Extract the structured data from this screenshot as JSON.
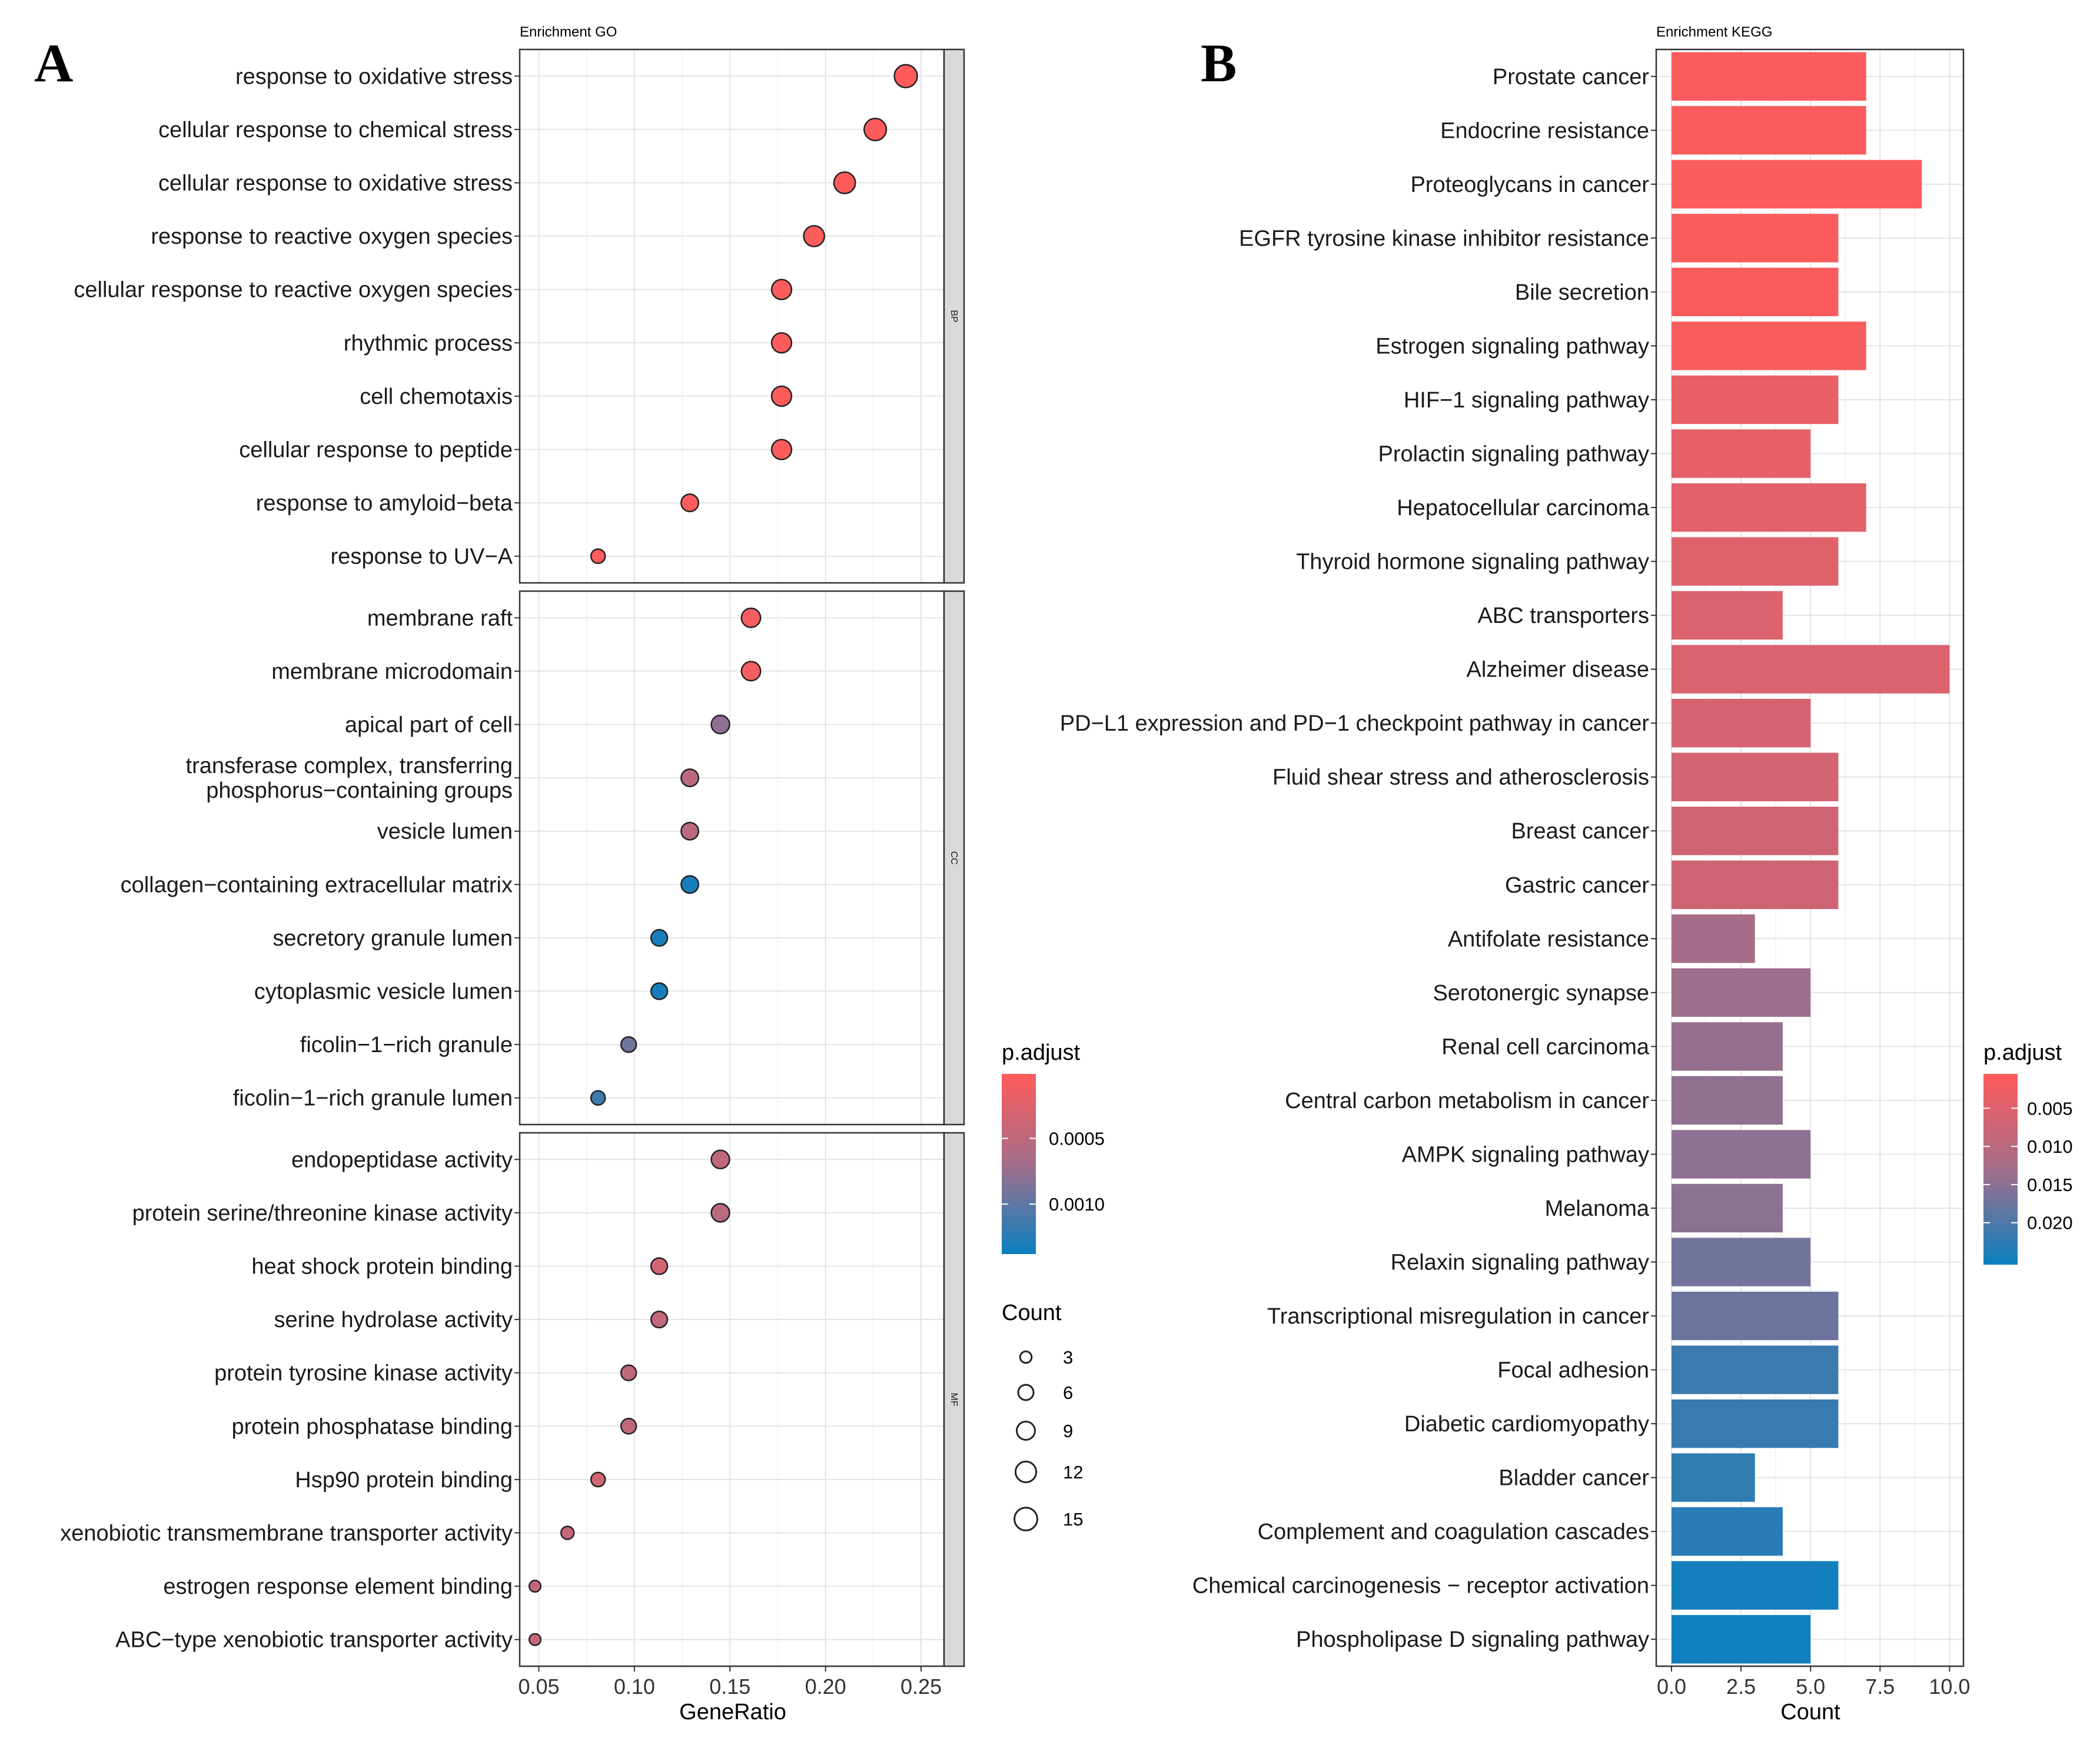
{
  "chart_data": [
    {
      "panel": "A",
      "type": "scatter",
      "title": "Enrichment GO",
      "xlabel": "GeneRatio",
      "ylabel": "",
      "xlim": [
        0.04,
        0.262
      ],
      "xticks": [
        0.05,
        0.1,
        0.15,
        0.2,
        0.25
      ],
      "xtick_labels": [
        "0.05",
        "0.10",
        "0.15",
        "0.20",
        "0.25"
      ],
      "grid": true,
      "facets": [
        {
          "strip": "BP",
          "terms": [
            {
              "label": "response to oxidative stress",
              "x": 0.242,
              "count": 15,
              "padj": 1e-05
            },
            {
              "label": "cellular response to chemical stress",
              "x": 0.226,
              "count": 14,
              "padj": 2e-05
            },
            {
              "label": "cellular response to oxidative stress",
              "x": 0.21,
              "count": 13,
              "padj": 2e-05
            },
            {
              "label": "response to reactive oxygen species",
              "x": 0.194,
              "count": 12,
              "padj": 3e-05
            },
            {
              "label": "cellular response to reactive oxygen species",
              "x": 0.177,
              "count": 11,
              "padj": 3e-05
            },
            {
              "label": "rhythmic process",
              "x": 0.177,
              "count": 11,
              "padj": 3e-05
            },
            {
              "label": "cell chemotaxis",
              "x": 0.177,
              "count": 11,
              "padj": 3e-05
            },
            {
              "label": "cellular response to peptide",
              "x": 0.177,
              "count": 11,
              "padj": 3e-05
            },
            {
              "label": "response to amyloid−beta",
              "x": 0.129,
              "count": 8,
              "padj": 4e-05
            },
            {
              "label": "response to UV−A",
              "x": 0.081,
              "count": 5,
              "padj": 4e-05
            }
          ]
        },
        {
          "strip": "CC",
          "terms": [
            {
              "label": "membrane raft",
              "x": 0.161,
              "count": 10,
              "padj": 8e-05
            },
            {
              "label": "membrane microdomain",
              "x": 0.161,
              "count": 10,
              "padj": 8e-05
            },
            {
              "label": "apical part of cell",
              "x": 0.145,
              "count": 9,
              "padj": 0.00078
            },
            {
              "label": "transferase complex, transferring\nphosphorus−containing groups",
              "x": 0.129,
              "count": 8,
              "padj": 0.00052
            },
            {
              "label": "vesicle lumen",
              "x": 0.129,
              "count": 8,
              "padj": 0.00052
            },
            {
              "label": "collagen−containing extracellular matrix",
              "x": 0.129,
              "count": 8,
              "padj": 0.00132
            },
            {
              "label": "secretory granule lumen",
              "x": 0.113,
              "count": 7,
              "padj": 0.00132
            },
            {
              "label": "cytoplasmic vesicle lumen",
              "x": 0.113,
              "count": 7,
              "padj": 0.00132
            },
            {
              "label": "ficolin−1−rich granule",
              "x": 0.097,
              "count": 6,
              "padj": 0.00092
            },
            {
              "label": "ficolin−1−rich granule lumen",
              "x": 0.081,
              "count": 5,
              "padj": 0.00115
            }
          ]
        },
        {
          "strip": "MF",
          "terms": [
            {
              "label": "endopeptidase activity",
              "x": 0.145,
              "count": 9,
              "padj": 0.00048
            },
            {
              "label": "protein serine/threonine kinase activity",
              "x": 0.145,
              "count": 9,
              "padj": 0.00054
            },
            {
              "label": "heat shock protein binding",
              "x": 0.113,
              "count": 7,
              "padj": 0.00034
            },
            {
              "label": "serine hydrolase activity",
              "x": 0.113,
              "count": 7,
              "padj": 0.00046
            },
            {
              "label": "protein tyrosine kinase activity",
              "x": 0.097,
              "count": 6,
              "padj": 0.00048
            },
            {
              "label": "protein phosphatase binding",
              "x": 0.097,
              "count": 6,
              "padj": 0.00048
            },
            {
              "label": "Hsp90 protein binding",
              "x": 0.081,
              "count": 5,
              "padj": 0.00036
            },
            {
              "label": "xenobiotic transmembrane transporter activity",
              "x": 0.065,
              "count": 4,
              "padj": 0.00044
            },
            {
              "label": "estrogen response element binding",
              "x": 0.048,
              "count": 3,
              "padj": 0.00044
            },
            {
              "label": "ABC−type xenobiotic transporter activity",
              "x": 0.048,
              "count": 3,
              "padj": 0.00044
            }
          ]
        }
      ],
      "legend": {
        "position": "right",
        "color_title": "p.adjust",
        "color_range": [
          1e-05,
          0.00138
        ],
        "color_ticks": [
          0.0005,
          0.001
        ],
        "color_tick_labels": [
          "0.0005",
          "0.0010"
        ],
        "colors": {
          "low": "#FF5B5B",
          "mid": "#A36E8A",
          "high": "#0A80C0"
        },
        "size_title": "Count",
        "size_values": [
          3,
          6,
          9,
          12,
          15
        ],
        "size_labels": [
          "3",
          "6",
          "9",
          "12",
          "15"
        ]
      }
    },
    {
      "panel": "B",
      "type": "bar",
      "orientation": "horizontal",
      "title": "Enrichment KEGG",
      "xlabel": "Count",
      "ylabel": "",
      "xlim": [
        -0.55,
        10.5
      ],
      "xticks": [
        0,
        2.5,
        5,
        7.5,
        10
      ],
      "xtick_labels": [
        "0.0",
        "2.5",
        "5.0",
        "7.5",
        "10.0"
      ],
      "grid": true,
      "categories": [
        "Prostate cancer",
        "Endocrine resistance",
        "Proteoglycans in cancer",
        "EGFR tyrosine kinase inhibitor resistance",
        "Bile secretion",
        "Estrogen signaling pathway",
        "HIF−1 signaling pathway",
        "Prolactin signaling pathway",
        "Hepatocellular carcinoma",
        "Thyroid hormone signaling pathway",
        "ABC transporters",
        "Alzheimer disease",
        "PD−L1 expression and PD−1 checkpoint pathway in cancer",
        "Fluid shear stress and atherosclerosis",
        "Breast cancer",
        "Gastric cancer",
        "Antifolate resistance",
        "Serotonergic synapse",
        "Renal cell carcinoma",
        "Central carbon metabolism in cancer",
        "AMPK signaling pathway",
        "Melanoma",
        "Relaxin signaling pathway",
        "Transcriptional misregulation in cancer",
        "Focal adhesion",
        "Diabetic cardiomyopathy",
        "Bladder cancer",
        "Complement and coagulation cascades",
        "Chemical carcinogenesis − receptor activation",
        "Phospholipase D signaling pathway"
      ],
      "values": [
        7,
        7,
        9,
        6,
        6,
        7,
        6,
        5,
        7,
        6,
        4,
        10,
        5,
        6,
        6,
        6,
        3,
        5,
        4,
        4,
        5,
        4,
        5,
        6,
        6,
        6,
        3,
        4,
        6,
        5
      ],
      "padj": [
        0.001,
        0.001,
        0.0011,
        0.0012,
        0.0012,
        0.0013,
        0.0035,
        0.004,
        0.0045,
        0.0048,
        0.0052,
        0.0055,
        0.006,
        0.0065,
        0.007,
        0.0072,
        0.0125,
        0.0135,
        0.014,
        0.0145,
        0.0148,
        0.015,
        0.017,
        0.0175,
        0.0215,
        0.0218,
        0.0225,
        0.023,
        0.0248,
        0.025
      ],
      "legend": {
        "position": "right",
        "color_title": "p.adjust",
        "color_range": [
          0.0005,
          0.0255
        ],
        "color_ticks": [
          0.005,
          0.01,
          0.015,
          0.02
        ],
        "color_tick_labels": [
          "0.005",
          "0.010",
          "0.015",
          "0.020"
        ],
        "colors": {
          "low": "#FF5B5B",
          "mid": "#A36E8A",
          "high": "#0A80C0"
        }
      }
    }
  ],
  "panel_letters": [
    "A",
    "B"
  ]
}
